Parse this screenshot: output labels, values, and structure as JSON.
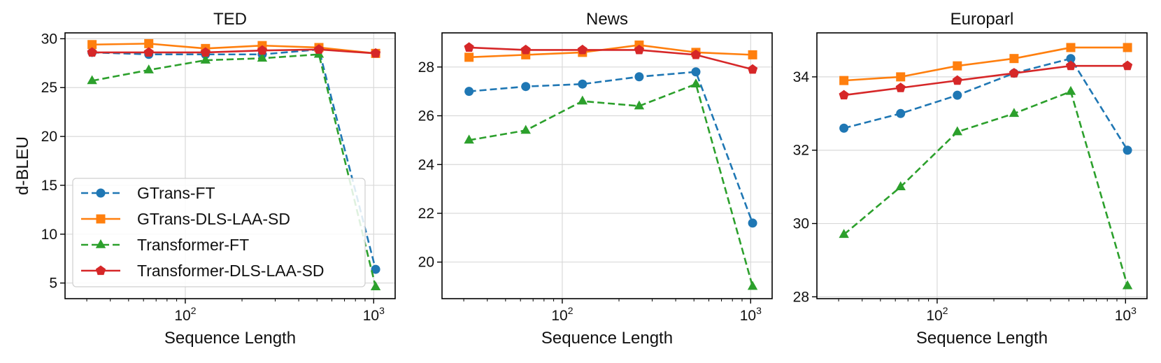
{
  "chart_data": [
    {
      "type": "line",
      "title": "TED",
      "xlabel": "Sequence Length",
      "ylabel": "d-BLEU",
      "xscale": "log",
      "x": [
        32,
        64,
        128,
        256,
        512,
        1024
      ],
      "xtick_labels": [
        "10^2",
        "10^3"
      ],
      "ylim": [
        3.4,
        30.6
      ],
      "yticks": [
        5,
        10,
        15,
        20,
        25,
        30
      ],
      "grid": true,
      "legend": "lower-left",
      "series": [
        {
          "name": "GTrans-FT",
          "values": [
            28.6,
            28.4,
            28.4,
            28.4,
            28.9,
            6.4
          ]
        },
        {
          "name": "GTrans-DLS-LAA-SD",
          "values": [
            29.4,
            29.5,
            29.0,
            29.3,
            29.1,
            28.5
          ]
        },
        {
          "name": "Transformer-FT",
          "values": [
            25.7,
            26.8,
            27.8,
            28.0,
            28.4,
            4.6
          ]
        },
        {
          "name": "Transformer-DLS-LAA-SD",
          "values": [
            28.6,
            28.6,
            28.6,
            28.8,
            28.9,
            28.5
          ]
        }
      ]
    },
    {
      "type": "line",
      "title": "News",
      "xlabel": "Sequence Length",
      "ylabel": "",
      "xscale": "log",
      "x": [
        32,
        64,
        128,
        256,
        512,
        1024
      ],
      "xtick_labels": [
        "10^2",
        "10^3"
      ],
      "ylim": [
        18.5,
        29.4
      ],
      "yticks": [
        20,
        22,
        24,
        26,
        28
      ],
      "grid": true,
      "series": [
        {
          "name": "GTrans-FT",
          "values": [
            27.0,
            27.2,
            27.3,
            27.6,
            27.8,
            21.6
          ]
        },
        {
          "name": "GTrans-DLS-LAA-SD",
          "values": [
            28.4,
            28.5,
            28.6,
            28.9,
            28.6,
            28.5
          ]
        },
        {
          "name": "Transformer-FT",
          "values": [
            25.0,
            25.4,
            26.6,
            26.4,
            27.3,
            19.0
          ]
        },
        {
          "name": "Transformer-DLS-LAA-SD",
          "values": [
            28.8,
            28.7,
            28.7,
            28.7,
            28.5,
            27.9
          ]
        }
      ]
    },
    {
      "type": "line",
      "title": "Europarl",
      "xlabel": "Sequence Length",
      "ylabel": "",
      "xscale": "log",
      "x": [
        32,
        64,
        128,
        256,
        512,
        1024
      ],
      "xtick_labels": [
        "10^2",
        "10^3"
      ],
      "ylim": [
        27.95,
        35.2
      ],
      "yticks": [
        28,
        30,
        32,
        34
      ],
      "grid": true,
      "series": [
        {
          "name": "GTrans-FT",
          "values": [
            32.6,
            33.0,
            33.5,
            34.1,
            34.5,
            32.0
          ]
        },
        {
          "name": "GTrans-DLS-LAA-SD",
          "values": [
            33.9,
            34.0,
            34.3,
            34.5,
            34.8,
            34.8
          ]
        },
        {
          "name": "Transformer-FT",
          "values": [
            29.7,
            31.0,
            32.5,
            33.0,
            33.6,
            28.3
          ]
        },
        {
          "name": "Transformer-DLS-LAA-SD",
          "values": [
            33.5,
            33.7,
            33.9,
            34.1,
            34.3,
            34.3
          ]
        }
      ]
    }
  ],
  "style": {
    "colors": [
      "#1f77b4",
      "#ff7f0e",
      "#2ca02c",
      "#d62728"
    ],
    "line_styles": [
      "dashed",
      "solid",
      "dashed",
      "solid"
    ],
    "markers": [
      "circle",
      "square",
      "triangle",
      "pentagon"
    ],
    "grid_color": "#d9d9d9"
  }
}
